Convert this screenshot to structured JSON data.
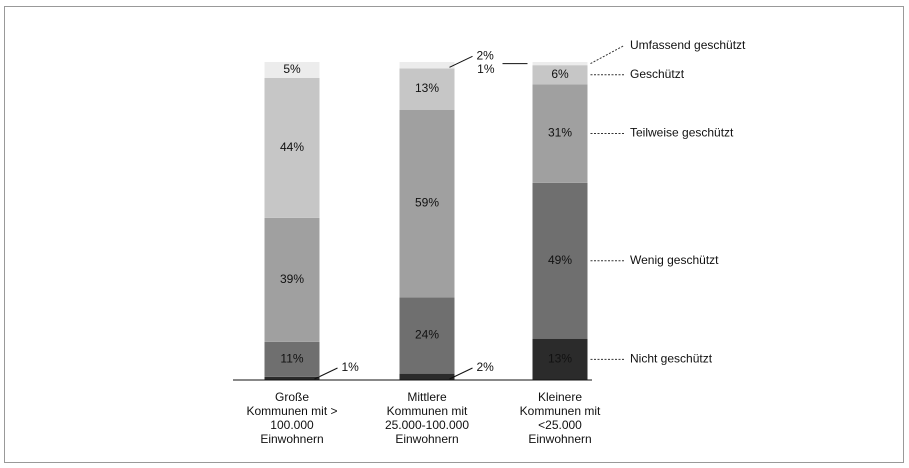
{
  "chart_data": {
    "type": "stacked_bar",
    "categories": [
      "Große Kommunen mit > 100.000 Einwohnern",
      "Mittlere Kommunen mit 25.000-100.000 Einwohnern",
      "Kleinere Kommunen mit <25.000 Einwohnern"
    ],
    "ylim": [
      0,
      100
    ],
    "series": [
      {
        "name": "Nicht geschützt",
        "color": "#2b2b2b",
        "values": [
          1,
          2,
          13
        ],
        "value_labels": [
          "1%",
          "2%",
          "13%"
        ]
      },
      {
        "name": "Wenig geschützt",
        "color": "#6f6f6f",
        "values": [
          11,
          24,
          49
        ],
        "value_labels": [
          "11%",
          "24%",
          "49%"
        ]
      },
      {
        "name": "Teilweise geschützt",
        "color": "#a0a0a0",
        "values": [
          39,
          59,
          31
        ],
        "value_labels": [
          "39%",
          "59%",
          "31%"
        ]
      },
      {
        "name": "Geschützt",
        "color": "#c6c6c6",
        "values": [
          44,
          13,
          6
        ],
        "value_labels": [
          "44%",
          "13%",
          "6%"
        ]
      },
      {
        "name": "Umfassend geschützt",
        "color": "#ececec",
        "values": [
          5,
          2,
          1
        ],
        "value_labels": [
          "5%",
          "2%",
          "1%"
        ]
      }
    ]
  }
}
